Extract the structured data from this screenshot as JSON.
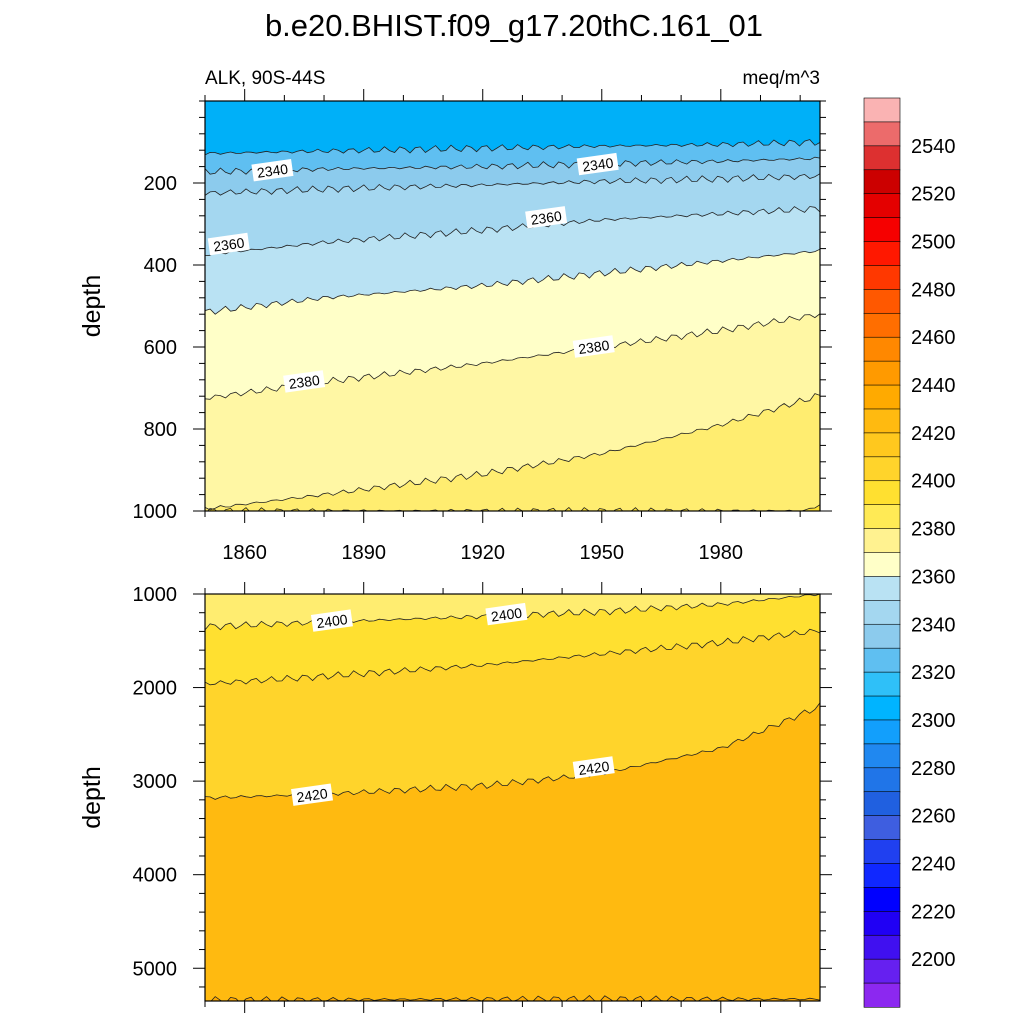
{
  "figure": {
    "title": "b.e20.BHIST.f09_g17.20thC.161_01",
    "left_subtitle": "ALK, 90S-44S",
    "right_subtitle": "meq/m^3"
  },
  "chart_data": [
    {
      "type": "contour",
      "panel": "upper",
      "title": "b.e20.BHIST.f09_g17.20thC.161_01",
      "subtitle_left": "ALK, 90S-44S",
      "subtitle_right": "meq/m^3",
      "xlabel": "",
      "ylabel": "depth",
      "xlim": [
        1850,
        2005
      ],
      "ylim": [
        1000,
        0
      ],
      "x_ticks": [
        1860,
        1890,
        1920,
        1950,
        1980
      ],
      "y_ticks": [
        200,
        400,
        600,
        800,
        1000
      ],
      "contour_levels": [
        2320,
        2330,
        2340,
        2350,
        2360,
        2370,
        2380,
        2390,
        2400
      ],
      "contour_lines": [
        {
          "level": 2330,
          "x": [
            1850,
            1880,
            1920,
            1950,
            1980,
            2005
          ],
          "y": [
            128,
            122,
            115,
            110,
            106,
            100
          ]
        },
        {
          "level": 2340,
          "x": [
            1850,
            1880,
            1920,
            1950,
            1980,
            2005
          ],
          "y": [
            173,
            166,
            160,
            153,
            147,
            140
          ]
        },
        {
          "level": 2350,
          "x": [
            1850,
            1880,
            1920,
            1950,
            1980,
            2005
          ],
          "y": [
            225,
            215,
            205,
            196,
            190,
            183
          ]
        },
        {
          "level": 2360,
          "x": [
            1850,
            1880,
            1920,
            1950,
            1980,
            2005
          ],
          "y": [
            375,
            345,
            315,
            290,
            275,
            262
          ]
        },
        {
          "level": 2370,
          "x": [
            1850,
            1880,
            1920,
            1950,
            1980,
            2005
          ],
          "y": [
            515,
            480,
            450,
            420,
            390,
            365
          ]
        },
        {
          "level": 2380,
          "x": [
            1850,
            1880,
            1920,
            1950,
            1980,
            2005
          ],
          "y": [
            725,
            685,
            640,
            600,
            560,
            520
          ]
        },
        {
          "level": 2390,
          "x": [
            1850,
            1880,
            1920,
            1950,
            1980,
            2005
          ],
          "y": [
            995,
            960,
            910,
            860,
            790,
            718
          ]
        },
        {
          "level": 2400,
          "x": [
            2001,
            2005
          ],
          "y": [
            1000,
            985
          ]
        }
      ],
      "line_labels": [
        {
          "text": "2340",
          "x": 1867,
          "y": 170
        },
        {
          "text": "2340",
          "x": 1949,
          "y": 155
        },
        {
          "text": "2360",
          "x": 1856,
          "y": 350
        },
        {
          "text": "2360",
          "x": 1936,
          "y": 285
        },
        {
          "text": "2380",
          "x": 1875,
          "y": 685
        },
        {
          "text": "2380",
          "x": 1948,
          "y": 600
        }
      ]
    },
    {
      "type": "contour",
      "panel": "lower",
      "xlabel": "",
      "ylabel": "depth",
      "xlim": [
        1850,
        2005
      ],
      "ylim": [
        5350,
        1000
      ],
      "y_ticks": [
        1000,
        2000,
        3000,
        4000,
        5000
      ],
      "contour_levels": [
        2400,
        2410,
        2420,
        2430
      ],
      "contour_lines": [
        {
          "level": 2400,
          "x": [
            1850,
            1880,
            1920,
            1950,
            1980,
            2005
          ],
          "y": [
            1350,
            1300,
            1240,
            1190,
            1110,
            1000
          ]
        },
        {
          "level": 2410,
          "x": [
            1850,
            1880,
            1920,
            1950,
            1980,
            2005
          ],
          "y": [
            1960,
            1880,
            1760,
            1640,
            1520,
            1390
          ]
        },
        {
          "level": 2420,
          "x": [
            1850,
            1880,
            1920,
            1950,
            1980,
            2005
          ],
          "y": [
            3180,
            3140,
            3050,
            2920,
            2650,
            2200
          ]
        },
        {
          "level": 2430,
          "x": [
            1850,
            1920,
            2005
          ],
          "y": [
            5340,
            5330,
            5330
          ]
        }
      ],
      "line_labels": [
        {
          "text": "2400",
          "x": 1882,
          "y": 1290
        },
        {
          "text": "2400",
          "x": 1926,
          "y": 1220
        },
        {
          "text": "2420",
          "x": 1877,
          "y": 3150
        },
        {
          "text": "2420",
          "x": 1948,
          "y": 2860
        }
      ]
    }
  ],
  "colorbar": {
    "labels": [
      "2540",
      "2520",
      "2500",
      "2480",
      "2460",
      "2440",
      "2420",
      "2400",
      "2380",
      "2360",
      "2340",
      "2320",
      "2300",
      "2280",
      "2260",
      "2240",
      "2220",
      "2200"
    ],
    "colors": [
      "#fab3b3",
      "#ec6b6b",
      "#dd3030",
      "#cc0000",
      "#e40000",
      "#f60000",
      "#ff1800",
      "#ff3800",
      "#ff5800",
      "#ff6e00",
      "#ff8800",
      "#ff9a00",
      "#ffaa00",
      "#ffba10",
      "#ffc81e",
      "#ffd42b",
      "#ffe030",
      "#ffea55",
      "#fff290",
      "#ffffc8",
      "#b9e2f3",
      "#a4d7f0",
      "#8ccbed",
      "#5fbff1",
      "#2fc0f8",
      "#00b4ff",
      "#129ffc",
      "#2088f0",
      "#2075e8",
      "#2060e0",
      "#3e5ee0",
      "#2040f0",
      "#1028ff",
      "#0000ff",
      "#2000f4",
      "#4010f0",
      "#6620f0",
      "#8c28f0"
    ],
    "fill_levels": {
      "2320": "#2fc0f8",
      "2330": "#5fbff1",
      "2340": "#8ccbed",
      "2350": "#a4d7f0",
      "2360": "#b9e2f3",
      "2370": "#ffffc8",
      "2380": "#fff7a4",
      "2390": "#ffed70",
      "2400": "#ffe030",
      "2410": "#ffd42b",
      "2420": "#ffba10",
      "2430": "#ffaa00",
      "top_band": "#00b0f8"
    }
  }
}
